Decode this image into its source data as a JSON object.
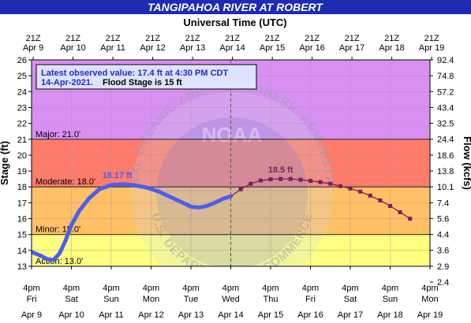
{
  "chart_data": {
    "type": "line",
    "title": "TANGIPAHOA RIVER AT ROBERT",
    "top_axis_title": "Universal Time (UTC)",
    "top_ticks": [
      {
        "l1": "21Z",
        "l2": "Apr  9"
      },
      {
        "l1": "21Z",
        "l2": "Apr 10"
      },
      {
        "l1": "21Z",
        "l2": "Apr 11"
      },
      {
        "l1": "21Z",
        "l2": "Apr 12"
      },
      {
        "l1": "21Z",
        "l2": "Apr 13"
      },
      {
        "l1": "21Z",
        "l2": "Apr 14"
      },
      {
        "l1": "21Z",
        "l2": "Apr 15"
      },
      {
        "l1": "21Z",
        "l2": "Apr 16"
      },
      {
        "l1": "21Z",
        "l2": "Apr 17"
      },
      {
        "l1": "21Z",
        "l2": "Apr 18"
      },
      {
        "l1": "21Z",
        "l2": "Apr 19"
      }
    ],
    "bottom_ticks": [
      {
        "time": "4pm",
        "day": "Fri",
        "date": "Apr  9"
      },
      {
        "time": "4pm",
        "day": "Sat",
        "date": "Apr 10"
      },
      {
        "time": "4pm",
        "day": "Sun",
        "date": "Apr 11"
      },
      {
        "time": "4pm",
        "day": "Mon",
        "date": "Apr 12"
      },
      {
        "time": "4pm",
        "day": "Tue",
        "date": "Apr 13"
      },
      {
        "time": "4pm",
        "day": "Wed",
        "date": "Apr 14"
      },
      {
        "time": "4pm",
        "day": "Thu",
        "date": "Apr 15"
      },
      {
        "time": "4pm",
        "day": "Fri",
        "date": "Apr 16"
      },
      {
        "time": "4pm",
        "day": "Sat",
        "date": "Apr 17"
      },
      {
        "time": "4pm",
        "day": "Sun",
        "date": "Apr 18"
      },
      {
        "time": "4pm",
        "day": "Mon",
        "date": "Apr 19"
      }
    ],
    "ylabel_left": "Stage (ft)",
    "ylabel_right": "Flow (kcfs)",
    "ylim": [
      13,
      26
    ],
    "y_ticks": [
      13,
      14,
      15,
      16,
      17,
      18,
      19,
      20,
      21,
      22,
      23,
      24,
      25,
      26
    ],
    "flow_ticks": [
      "2.4",
      "2.9",
      "3.6",
      "4.4",
      "5.6",
      "7.4",
      "10.1",
      "13.8",
      "18.6",
      "24.4",
      "32.5",
      "43.4",
      "57.2",
      "74.8",
      "92.4"
    ],
    "flow_tick_stages": [
      12,
      13,
      14,
      15,
      16,
      17,
      18,
      19,
      20,
      21,
      22,
      23,
      24,
      25,
      26
    ],
    "flood_categories": [
      {
        "name": "Action",
        "from": 13,
        "to": 15,
        "color": "#ffff80",
        "label": "Action: 13.0'"
      },
      {
        "name": "Minor",
        "from": 15,
        "to": 18,
        "color": "#ffc066",
        "label": "Minor: 15.0'"
      },
      {
        "name": "Moderate",
        "from": 18,
        "to": 21,
        "color": "#ff7b6b",
        "label": "Moderate: 18.0'"
      },
      {
        "name": "Major",
        "from": 21,
        "to": 26,
        "color": "#d98ff2",
        "label": "Major: 21.0'"
      }
    ],
    "x_range_days": [
      0,
      10
    ],
    "now_day": 5,
    "observed_color": "#4a5ff2",
    "forecast_color": "#7a1f5e",
    "observed": [
      {
        "x": -0.1,
        "y": 13.9
      },
      {
        "x": 0.2,
        "y": 13.7
      },
      {
        "x": 0.4,
        "y": 13.45
      },
      {
        "x": 0.55,
        "y": 13.4
      },
      {
        "x": 0.7,
        "y": 13.8
      },
      {
        "x": 0.85,
        "y": 14.6
      },
      {
        "x": 1.0,
        "y": 15.6
      },
      {
        "x": 1.2,
        "y": 16.5
      },
      {
        "x": 1.45,
        "y": 17.3
      },
      {
        "x": 1.7,
        "y": 17.85
      },
      {
        "x": 2.0,
        "y": 18.12
      },
      {
        "x": 2.3,
        "y": 18.17
      },
      {
        "x": 2.6,
        "y": 18.1
      },
      {
        "x": 2.9,
        "y": 17.95
      },
      {
        "x": 3.2,
        "y": 17.7
      },
      {
        "x": 3.5,
        "y": 17.35
      },
      {
        "x": 3.8,
        "y": 17.0
      },
      {
        "x": 4.0,
        "y": 16.75
      },
      {
        "x": 4.2,
        "y": 16.7
      },
      {
        "x": 4.4,
        "y": 16.8
      },
      {
        "x": 4.6,
        "y": 17.0
      },
      {
        "x": 4.8,
        "y": 17.25
      },
      {
        "x": 5.0,
        "y": 17.4
      }
    ],
    "forecast": [
      {
        "x": 5.0,
        "y": 17.4
      },
      {
        "x": 5.25,
        "y": 17.85
      },
      {
        "x": 5.5,
        "y": 18.2
      },
      {
        "x": 5.75,
        "y": 18.4
      },
      {
        "x": 6.0,
        "y": 18.48
      },
      {
        "x": 6.25,
        "y": 18.5
      },
      {
        "x": 6.5,
        "y": 18.5
      },
      {
        "x": 6.75,
        "y": 18.45
      },
      {
        "x": 7.0,
        "y": 18.38
      },
      {
        "x": 7.25,
        "y": 18.3
      },
      {
        "x": 7.5,
        "y": 18.2
      },
      {
        "x": 7.75,
        "y": 18.05
      },
      {
        "x": 8.0,
        "y": 17.9
      },
      {
        "x": 8.25,
        "y": 17.7
      },
      {
        "x": 8.5,
        "y": 17.45
      },
      {
        "x": 8.75,
        "y": 17.15
      },
      {
        "x": 9.0,
        "y": 16.8
      },
      {
        "x": 9.25,
        "y": 16.4
      },
      {
        "x": 9.5,
        "y": 16.0
      }
    ],
    "annotations": [
      {
        "text": "18.17 ft",
        "x": 2.15,
        "y": 18.17,
        "color": "#4a5ff2"
      },
      {
        "text": "18.5 ft",
        "x": 6.25,
        "y": 18.5,
        "color": "#7a1f5e"
      }
    ],
    "info_box": {
      "line1": "Latest observed value: 17.4 ft at 4:30 PM CDT",
      "line2_date": "14-Apr-2021.",
      "line2_flood": "Flood Stage is 15 ft"
    },
    "watermark": {
      "top": "NATIONAL OCEANIC AND ATMOSPHERIC ADMINISTRATION",
      "bottom": "U.S. DEPARTMENT OF COMMERCE",
      "center": "NOAA"
    }
  }
}
